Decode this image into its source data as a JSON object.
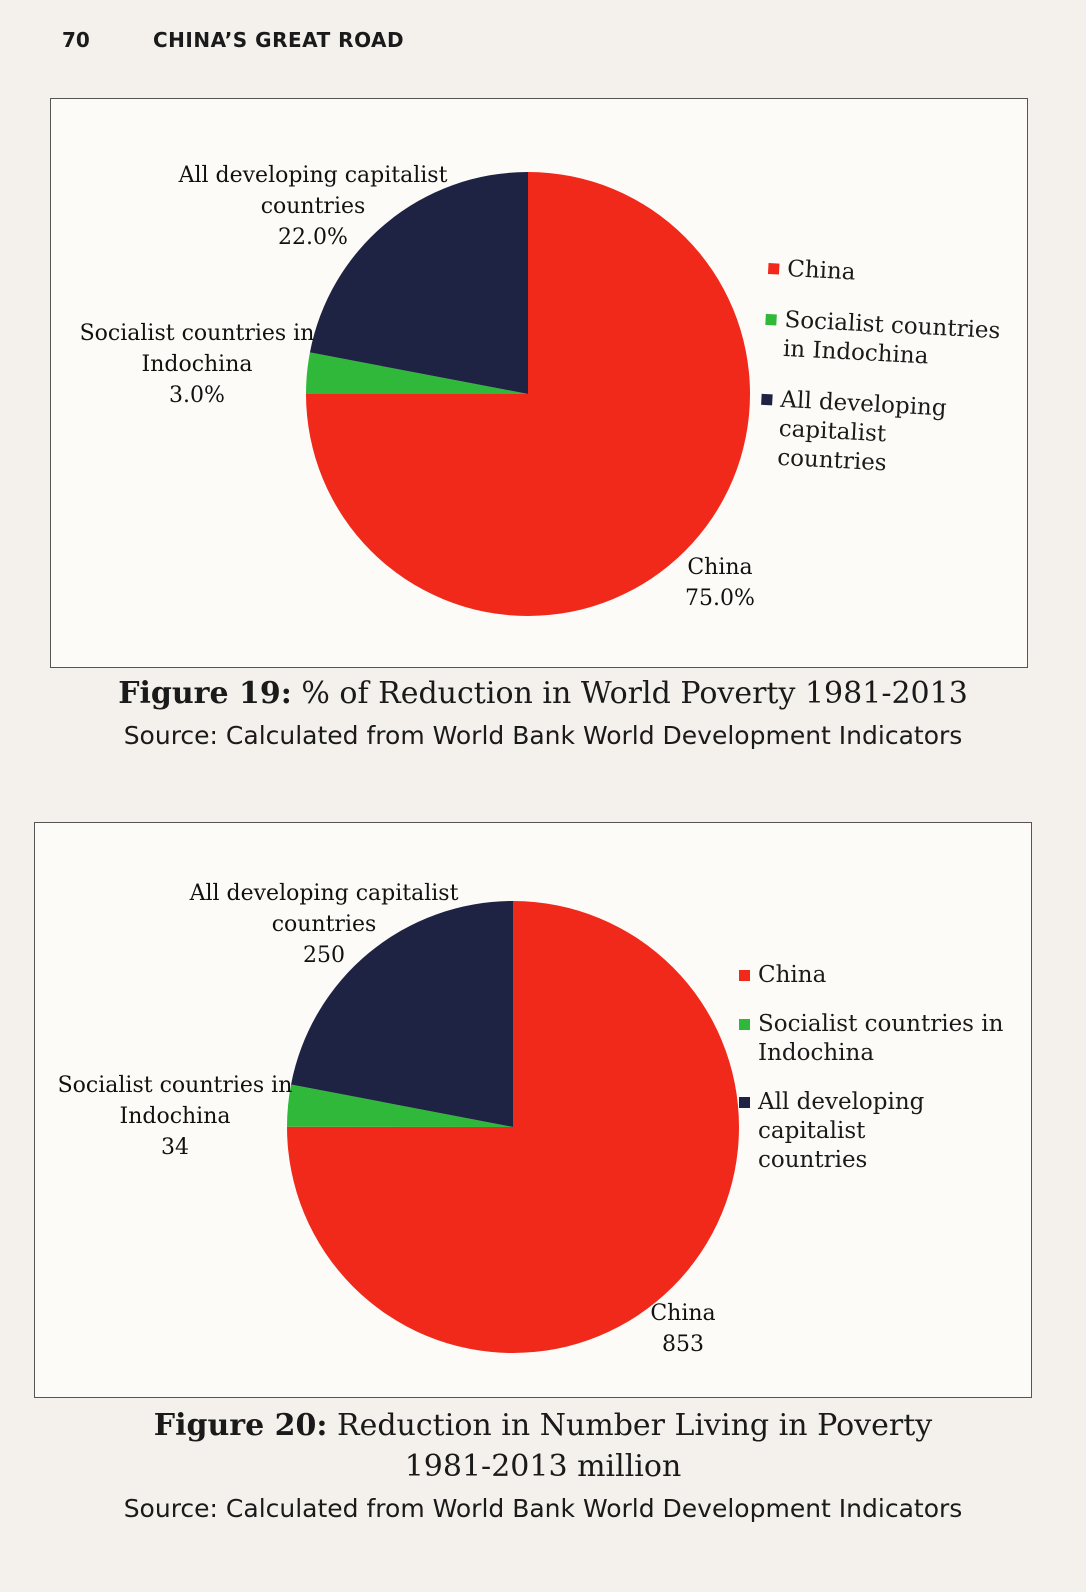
{
  "header": {
    "page_number": "70",
    "running_title": "CHINA’S GREAT ROAD"
  },
  "colors": {
    "china": "#f0291b",
    "indochina": "#2fb83a",
    "capitalist": "#1f2343"
  },
  "chart_data": [
    {
      "type": "pie",
      "categories": [
        "China",
        "Socialist countries in Indochina",
        "All developing capitalist countries"
      ],
      "values": [
        75.0,
        3.0,
        22.0
      ],
      "value_labels": [
        "75.0%",
        "3.0%",
        "22.0%"
      ],
      "slice_labels": [
        [
          "China"
        ],
        [
          "Socialist countries in",
          "Indochina"
        ],
        [
          "All developing capitalist",
          "countries"
        ]
      ],
      "legend": [
        "China",
        "Socialist countries in Indochina",
        "All developing capitalist countries"
      ],
      "legend_lines": [
        [
          "China"
        ],
        [
          "Socialist countries",
          "in Indochina"
        ],
        [
          "All developing",
          "capitalist countries"
        ]
      ],
      "legend_position": "right"
    },
    {
      "type": "pie",
      "categories": [
        "China",
        "Socialist countries in Indochina",
        "All developing capitalist countries"
      ],
      "values": [
        853,
        34,
        250
      ],
      "value_labels": [
        "853",
        "34",
        "250"
      ],
      "slice_labels": [
        [
          "China"
        ],
        [
          "Socialist countries in",
          "Indochina"
        ],
        [
          "All developing capitalist",
          "countries"
        ]
      ],
      "legend": [
        "China",
        "Socialist countries in Indochina",
        "All developing capitalist countries"
      ],
      "legend_lines": [
        [
          "China"
        ],
        [
          "Socialist countries in",
          "Indochina"
        ],
        [
          "All developing capitalist",
          "countries"
        ]
      ],
      "legend_position": "right"
    }
  ],
  "figure19": {
    "label": "Figure 19:",
    "title": "% of Reduction in World Poverty 1981-2013",
    "source": "Source: Calculated from World Bank World Development Indicators"
  },
  "figure20": {
    "label": "Figure 20:",
    "title": "Reduction in Number Living in Poverty",
    "subtitle": "1981-2013 million",
    "source": "Source: Calculated from World Bank World Development Indicators"
  }
}
